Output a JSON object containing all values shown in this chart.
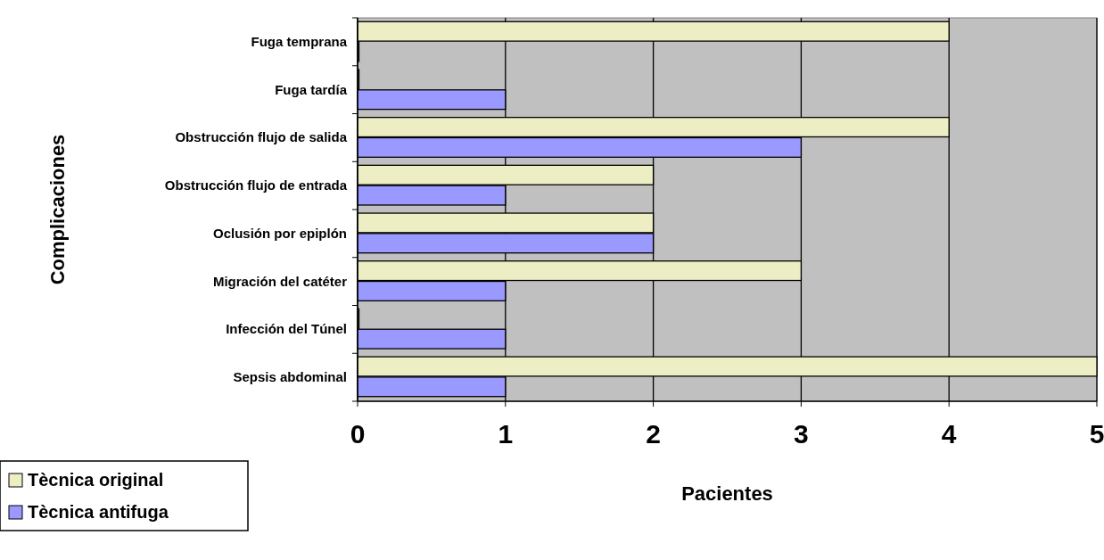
{
  "chart_data": {
    "type": "bar",
    "orientation": "horizontal",
    "xlabel": "Pacientes",
    "ylabel": "Complicaciones",
    "categories": [
      "Fuga temprana",
      "Fuga tardía",
      "Obstrucción flujo de salida",
      "Obstrucción flujo de entrada",
      "Oclusión por epiplón",
      "Migración del catéter",
      "Infección del Túnel",
      "Sepsis abdominal"
    ],
    "series": [
      {
        "name": "Tècnica original",
        "color": "#eeeec4",
        "values": [
          4,
          0,
          4,
          2,
          2,
          3,
          0,
          5
        ]
      },
      {
        "name": "Tècnica antifuga",
        "color": "#9999ff",
        "values": [
          0,
          1,
          3,
          1,
          2,
          1,
          1,
          1
        ]
      }
    ],
    "xlim": [
      0,
      5
    ],
    "xticks": [
      0,
      1,
      2,
      3,
      4,
      5
    ],
    "grid": "x",
    "legend": "bottom left"
  }
}
